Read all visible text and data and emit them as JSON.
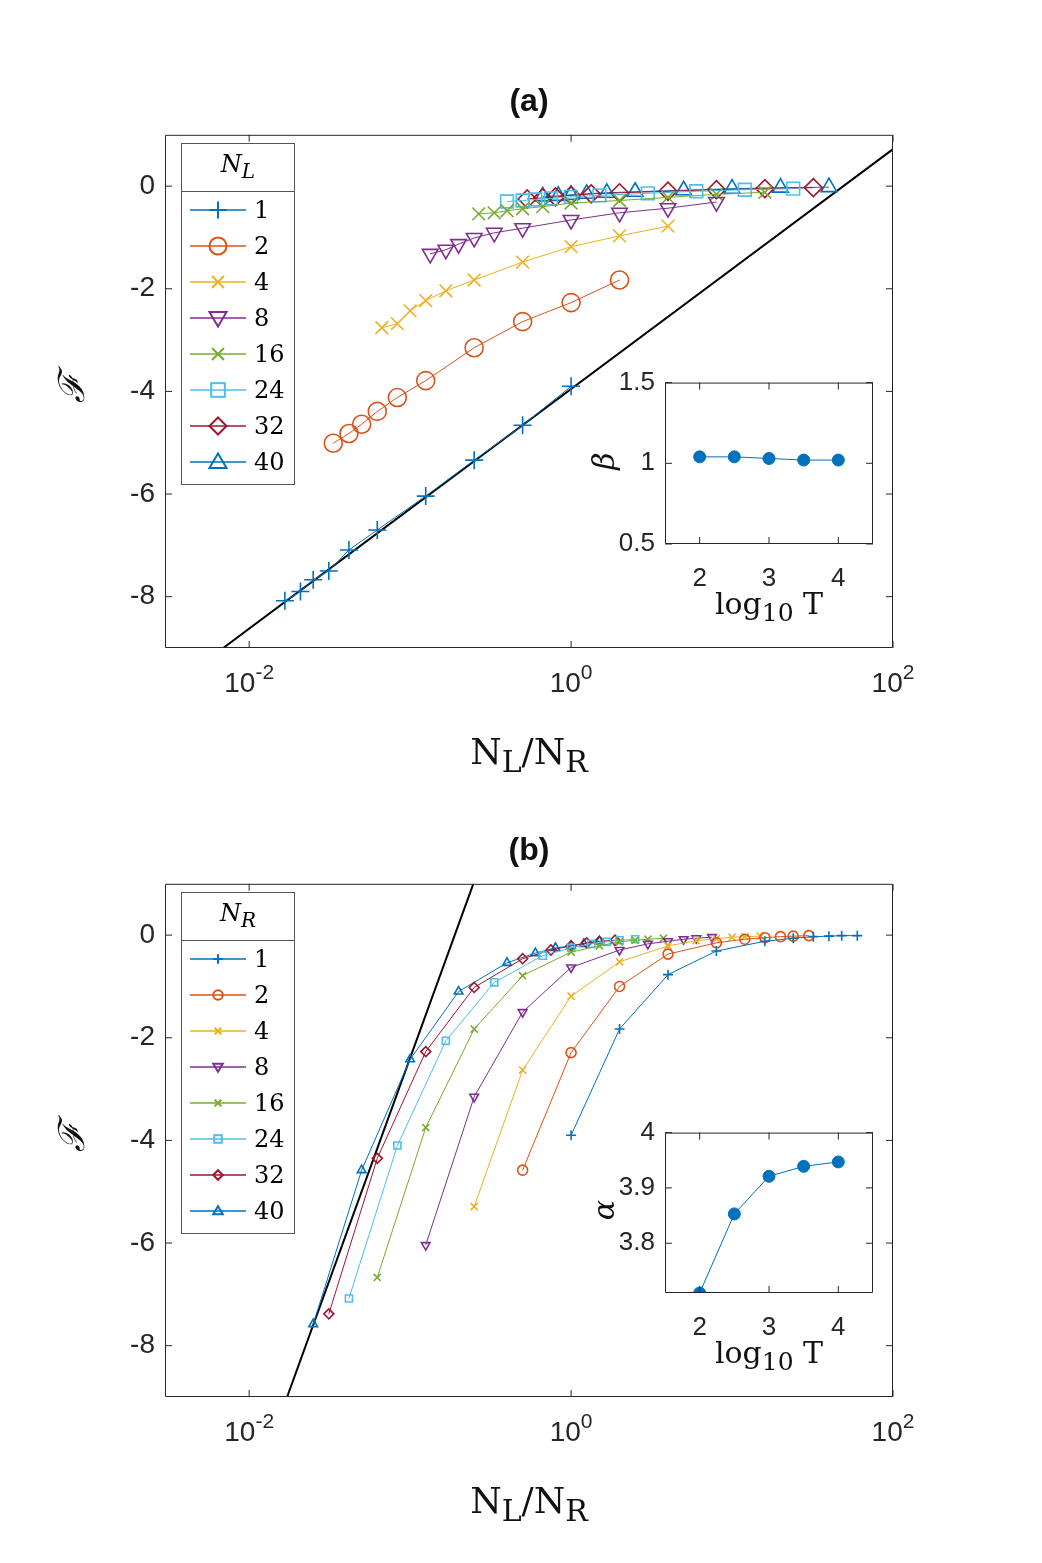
{
  "chart_data": [
    {
      "type": "line",
      "title": "(a)",
      "xlabel": "N$_{L}$/N$_{R}$",
      "ylabel": "ℱ",
      "legend_title": "N$_{L}$",
      "legend": "top left",
      "log": "x",
      "xlim": [
        0.003,
        100
      ],
      "xticks": [
        {
          "value": 0.01,
          "label": "10$^{-2}$"
        },
        {
          "value": 1,
          "label": "10$^{0}$"
        },
        {
          "value": 100,
          "label": "10$^{2}$"
        }
      ],
      "ylim": [
        -9,
        1
      ],
      "yticks": [
        -8,
        -6,
        -4,
        -2,
        0
      ],
      "series": [
        {
          "name": "1",
          "color": "#0072bd",
          "marker": "plus",
          "x": [
            0.01667,
            0.02083,
            0.025,
            0.03125,
            0.04167,
            0.0625,
            0.125,
            0.25,
            0.5,
            1
          ],
          "values": [
            -8.08,
            -7.9,
            -7.67,
            -7.5,
            -7.09,
            -6.7,
            -6.04,
            -5.34,
            -4.66,
            -3.9
          ]
        },
        {
          "name": "2",
          "color": "#d95319",
          "marker": "circle",
          "x": [
            0.0333,
            0.0417,
            0.05,
            0.0625,
            0.0833,
            0.125,
            0.25,
            0.5,
            1,
            2
          ],
          "values": [
            -5.01,
            -4.82,
            -4.64,
            -4.39,
            -4.12,
            -3.79,
            -3.15,
            -2.64,
            -2.27,
            -1.83
          ]
        },
        {
          "name": "4",
          "color": "#edb120",
          "marker": "cross",
          "x": [
            0.0667,
            0.0833,
            0.1,
            0.125,
            0.1667,
            0.25,
            0.5,
            1,
            2,
            4
          ],
          "values": [
            -2.76,
            -2.68,
            -2.43,
            -2.23,
            -2.04,
            -1.83,
            -1.48,
            -1.18,
            -0.97,
            -0.78
          ]
        },
        {
          "name": "8",
          "color": "#7e2f8e",
          "marker": "triangle-down",
          "x": [
            0.1333,
            0.1667,
            0.2,
            0.25,
            0.3333,
            0.5,
            1,
            2,
            4,
            8
          ],
          "values": [
            -1.32,
            -1.24,
            -1.13,
            -1.01,
            -0.91,
            -0.82,
            -0.66,
            -0.52,
            -0.43,
            -0.31
          ]
        },
        {
          "name": "16",
          "color": "#77ac30",
          "marker": "cross",
          "x": [
            0.2667,
            0.3333,
            0.4,
            0.5,
            0.6667,
            1,
            2,
            4,
            8,
            16
          ],
          "values": [
            -0.54,
            -0.52,
            -0.48,
            -0.44,
            -0.4,
            -0.33,
            -0.28,
            -0.22,
            -0.16,
            -0.12
          ]
        },
        {
          "name": "24",
          "color": "#4dbeee",
          "marker": "square",
          "x": [
            0.4,
            0.5,
            0.6,
            0.75,
            1,
            1.5,
            3,
            6,
            12,
            24
          ],
          "values": [
            -0.3,
            -0.28,
            -0.26,
            -0.24,
            -0.21,
            -0.18,
            -0.14,
            -0.1,
            -0.07,
            -0.05
          ]
        },
        {
          "name": "32",
          "color": "#a2142f",
          "marker": "diamond",
          "x": [
            0.5333,
            0.6667,
            0.8,
            1,
            1.333,
            2,
            4,
            8,
            16,
            32
          ],
          "values": [
            -0.25,
            -0.23,
            -0.21,
            -0.18,
            -0.15,
            -0.13,
            -0.1,
            -0.07,
            -0.05,
            -0.03
          ]
        },
        {
          "name": "40",
          "color": "#0072bd",
          "marker": "triangle",
          "x": [
            0.6667,
            0.8333,
            1,
            1.25,
            1.667,
            2.5,
            5,
            10,
            20,
            40
          ],
          "values": [
            -0.2,
            -0.19,
            -0.17,
            -0.15,
            -0.13,
            -0.11,
            -0.08,
            -0.05,
            -0.03,
            -0.02
          ]
        },
        {
          "type": "line",
          "color": "#000000",
          "marker": "none",
          "x": [
            0.0069,
            100
          ],
          "values": [
            -9,
            0.72
          ]
        }
      ]
    },
    {
      "type": "line",
      "xlabel": "log$_{10}$ T",
      "ylabel": "β",
      "marker": "circle",
      "xlim": [
        1.5,
        4.5
      ],
      "xticks": [
        2,
        3,
        4
      ],
      "ylim": [
        0.5,
        1.5
      ],
      "yticks": [
        0.5,
        1,
        1.5
      ],
      "x": [
        2,
        2.5,
        3,
        3.5,
        4
      ],
      "series": [
        {
          "color": "#0072bd",
          "values": [
            1.04,
            1.04,
            1.03,
            1.02,
            1.02
          ]
        }
      ]
    },
    {
      "type": "line",
      "title": "(b)",
      "xlabel": "N$_{L}$/N$_{R}$",
      "ylabel": "ℱ",
      "legend_title": "N$_{R}$",
      "legend": "top left",
      "log": "x",
      "xlim": [
        0.003,
        100
      ],
      "xticks": [
        {
          "value": 0.01,
          "label": "10$^{-2}$"
        },
        {
          "value": 1,
          "label": "10$^{0}$"
        },
        {
          "value": 100,
          "label": "10$^{2}$"
        }
      ],
      "ylim": [
        -9,
        1
      ],
      "yticks": [
        -8,
        -6,
        -4,
        -2,
        0
      ],
      "series": [
        {
          "name": "1",
          "color": "#0072bd",
          "marker": "plus",
          "x": [
            1,
            2,
            4,
            8,
            16,
            24,
            32,
            40,
            48,
            60
          ],
          "values": [
            -3.9,
            -1.83,
            -0.77,
            -0.31,
            -0.12,
            -0.06,
            -0.03,
            -0.02,
            -0.01,
            -0.01
          ]
        },
        {
          "name": "2",
          "color": "#d95319",
          "marker": "circle",
          "x": [
            0.5,
            1,
            2,
            4,
            8,
            12,
            16,
            20,
            24,
            30
          ],
          "values": [
            -4.58,
            -2.29,
            -1.0,
            -0.37,
            -0.15,
            -0.08,
            -0.05,
            -0.03,
            -0.02,
            -0.01
          ]
        },
        {
          "name": "4",
          "color": "#edb120",
          "marker": "cross",
          "x": [
            0.25,
            0.5,
            1,
            2,
            4,
            6,
            8,
            10,
            12,
            15
          ],
          "values": [
            -5.29,
            -2.63,
            -1.19,
            -0.52,
            -0.21,
            -0.11,
            -0.07,
            -0.04,
            -0.03,
            -0.02
          ]
        },
        {
          "name": "8",
          "color": "#7e2f8e",
          "marker": "triangle-down",
          "x": [
            0.125,
            0.25,
            0.5,
            1,
            2,
            3,
            4,
            5,
            6,
            7.5
          ],
          "values": [
            -6.04,
            -3.15,
            -1.5,
            -0.63,
            -0.29,
            -0.17,
            -0.12,
            -0.08,
            -0.06,
            -0.04
          ]
        },
        {
          "name": "16",
          "color": "#77ac30",
          "marker": "cross",
          "x": [
            0.0625,
            0.125,
            0.25,
            0.5,
            1,
            1.5,
            2,
            2.5,
            3,
            3.75
          ],
          "values": [
            -6.67,
            -3.75,
            -1.83,
            -0.79,
            -0.33,
            -0.21,
            -0.13,
            -0.1,
            -0.08,
            -0.06
          ]
        },
        {
          "name": "24",
          "color": "#4dbeee",
          "marker": "square",
          "x": [
            0.04167,
            0.08333,
            0.1667,
            0.3333,
            0.6667,
            1,
            1.333,
            1.667,
            2,
            2.5
          ],
          "values": [
            -7.08,
            -4.1,
            -2.06,
            -0.92,
            -0.4,
            -0.25,
            -0.17,
            -0.13,
            -0.1,
            -0.08
          ]
        },
        {
          "name": "32",
          "color": "#a2142f",
          "marker": "diamond",
          "x": [
            0.03125,
            0.0625,
            0.125,
            0.25,
            0.5,
            0.75,
            1,
            1.25,
            1.5,
            1.875
          ],
          "values": [
            -7.38,
            -4.35,
            -2.27,
            -1.02,
            -0.46,
            -0.29,
            -0.21,
            -0.15,
            -0.12,
            -0.1
          ]
        },
        {
          "name": "40",
          "color": "#0072bd",
          "marker": "triangle",
          "x": [
            0.025,
            0.05,
            0.1,
            0.2,
            0.4,
            0.6,
            0.8,
            1,
            1.2,
            1.5
          ],
          "values": [
            -7.58,
            -4.58,
            -2.42,
            -1.1,
            -0.54,
            -0.35,
            -0.25,
            -0.21,
            -0.17,
            -0.12
          ]
        },
        {
          "type": "line",
          "color": "#000000",
          "marker": "none",
          "x": [
            0.0172,
            0.247
          ],
          "values": [
            -9,
            1
          ]
        }
      ]
    },
    {
      "type": "line",
      "xlabel": "log$_{10}$ T",
      "ylabel": "α",
      "marker": "circle",
      "xlim": [
        1.5,
        4.5
      ],
      "xticks": [
        2,
        3,
        4
      ],
      "ylim": [
        3.71,
        4
      ],
      "yticks": [
        3.8,
        3.9,
        4
      ],
      "x": [
        2,
        2.5,
        3,
        3.5,
        4
      ],
      "series": [
        {
          "color": "#0072bd",
          "values": [
            3.71,
            3.853,
            3.921,
            3.939,
            3.947
          ]
        }
      ]
    }
  ]
}
